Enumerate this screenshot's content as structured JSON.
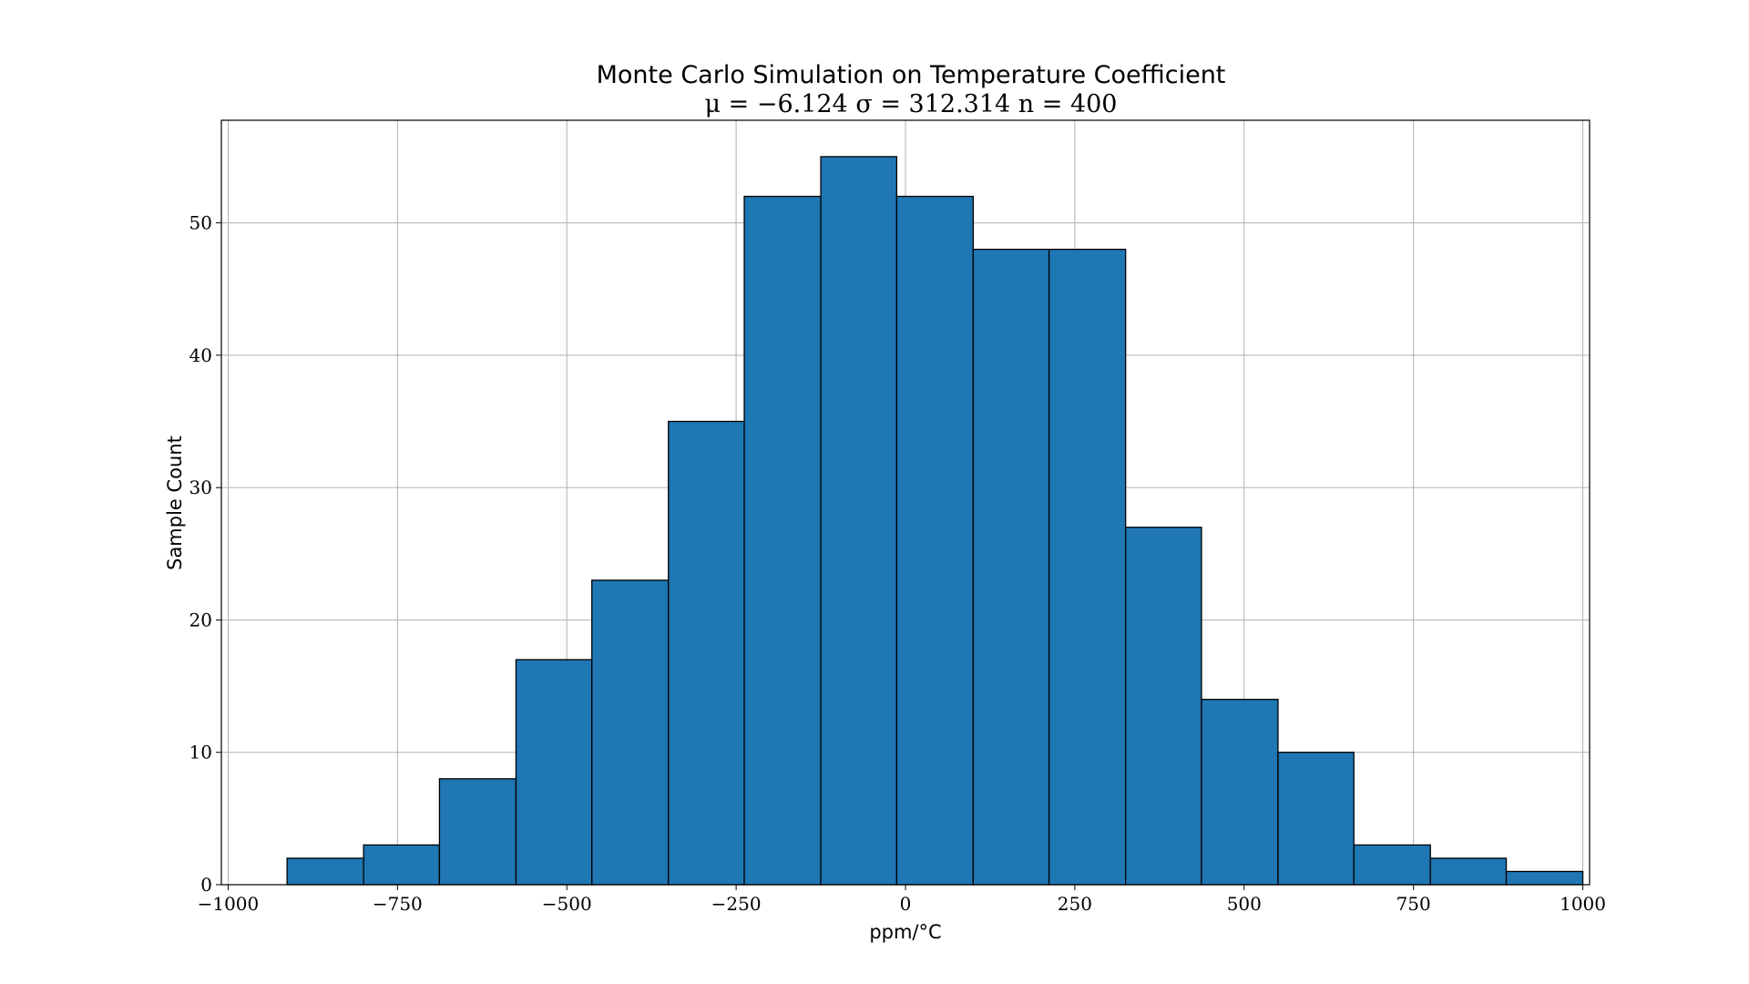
{
  "chart_data": {
    "type": "bar",
    "title": "Monte Carlo Simulation on Temperature Coefficient",
    "subtitle": "μ = −6.124 σ = 312.314 n = 400",
    "xlabel": "ppm/°C",
    "ylabel": "Sample Count",
    "xlim": [
      -1010,
      1010
    ],
    "ylim": [
      0,
      57.75
    ],
    "grid": true,
    "bar_color": "#1f77b4",
    "edge_color": "#000000",
    "x_ticks": [
      -1000,
      -750,
      -500,
      -250,
      0,
      250,
      500,
      750,
      1000
    ],
    "x_tick_labels": [
      "−1000",
      "−750",
      "−500",
      "−250",
      "0",
      "250",
      "500",
      "750",
      "1000"
    ],
    "y_ticks": [
      0,
      10,
      20,
      30,
      40,
      50
    ],
    "y_tick_labels": [
      "0",
      "10",
      "20",
      "30",
      "40",
      "50"
    ],
    "bin_edges": [
      -913,
      -800,
      -688,
      -575,
      -463,
      -350,
      -238,
      -125,
      -13,
      100,
      212,
      325,
      437,
      550,
      662,
      775,
      887,
      1000
    ],
    "counts": [
      2,
      3,
      8,
      17,
      23,
      35,
      52,
      55,
      52,
      48,
      48,
      27,
      14,
      10,
      3,
      2,
      1
    ]
  }
}
